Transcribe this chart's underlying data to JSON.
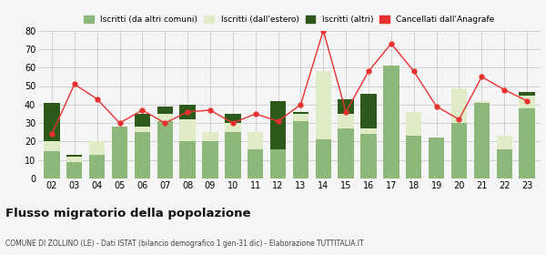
{
  "years": [
    "02",
    "03",
    "04",
    "05",
    "06",
    "07",
    "08",
    "09",
    "10",
    "11",
    "12",
    "13",
    "14",
    "15",
    "16",
    "17",
    "18",
    "19",
    "20",
    "21",
    "22",
    "23"
  ],
  "iscritti_altri_comuni": [
    15,
    9,
    13,
    28,
    25,
    31,
    20,
    20,
    25,
    16,
    16,
    31,
    21,
    27,
    24,
    61,
    23,
    22,
    30,
    41,
    16,
    38
  ],
  "iscritti_estero": [
    5,
    3,
    7,
    0,
    3,
    4,
    12,
    5,
    5,
    9,
    0,
    4,
    37,
    8,
    3,
    0,
    13,
    0,
    19,
    1,
    7,
    7
  ],
  "iscritti_altri": [
    21,
    1,
    0,
    0,
    7,
    4,
    8,
    0,
    5,
    0,
    26,
    1,
    0,
    8,
    19,
    0,
    0,
    0,
    0,
    0,
    0,
    2
  ],
  "cancellati": [
    24,
    51,
    43,
    30,
    37,
    30,
    36,
    37,
    30,
    35,
    31,
    40,
    80,
    36,
    58,
    73,
    58,
    39,
    32,
    55,
    48,
    42
  ],
  "color_altri_comuni": "#8db87a",
  "color_estero": "#e0ecc8",
  "color_altri": "#2d5a1b",
  "color_cancellati": "#e83030",
  "color_line": "#f08080",
  "title": "Flusso migratorio della popolazione",
  "subtitle": "COMUNE DI ZOLLINO (LE) - Dati ISTAT (bilancio demografico 1 gen-31 dic) - Elaborazione TUTTITALIA.IT",
  "legend_labels": [
    "Iscritti (da altri comuni)",
    "Iscritti (dall'estero)",
    "Iscritti (altri)",
    "Cancellati dall'Anagrafe"
  ],
  "ylim": [
    0,
    80
  ],
  "yticks": [
    0,
    10,
    20,
    30,
    40,
    50,
    60,
    70,
    80
  ],
  "background_color": "#f5f5f5"
}
